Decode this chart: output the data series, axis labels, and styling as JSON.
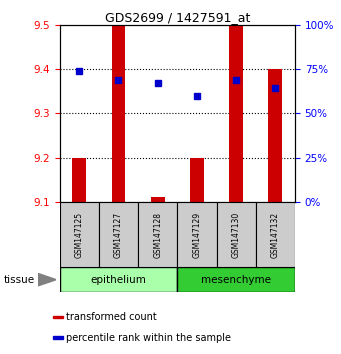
{
  "title": "GDS2699 / 1427591_at",
  "samples": [
    "GSM147125",
    "GSM147127",
    "GSM147128",
    "GSM147129",
    "GSM147130",
    "GSM147132"
  ],
  "red_values": {
    "GSM147125": [
      9.1,
      9.2
    ],
    "GSM147127": [
      9.1,
      9.5
    ],
    "GSM147128": [
      9.1,
      9.11
    ],
    "GSM147129": [
      9.1,
      9.2
    ],
    "GSM147130": [
      9.1,
      9.5
    ],
    "GSM147132": [
      9.1,
      9.4
    ]
  },
  "blue_values": {
    "GSM147125": 9.395,
    "GSM147127": 9.375,
    "GSM147128": 9.368,
    "GSM147129": 9.338,
    "GSM147130": 9.375,
    "GSM147132": 9.358
  },
  "ylim": [
    9.1,
    9.5
  ],
  "yticks_left": [
    9.1,
    9.2,
    9.3,
    9.4,
    9.5
  ],
  "yticks_right": [
    0,
    25,
    50,
    75,
    100
  ],
  "bar_color": "#CC0000",
  "dot_color": "#0000CC",
  "bar_width": 0.35,
  "epithelium_color": "#AAFFAA",
  "mesenchyme_color": "#33CC33",
  "sample_box_color": "#CCCCCC",
  "legend_items": [
    {
      "label": "transformed count",
      "color": "#CC0000"
    },
    {
      "label": "percentile rank within the sample",
      "color": "#0000CC"
    }
  ]
}
